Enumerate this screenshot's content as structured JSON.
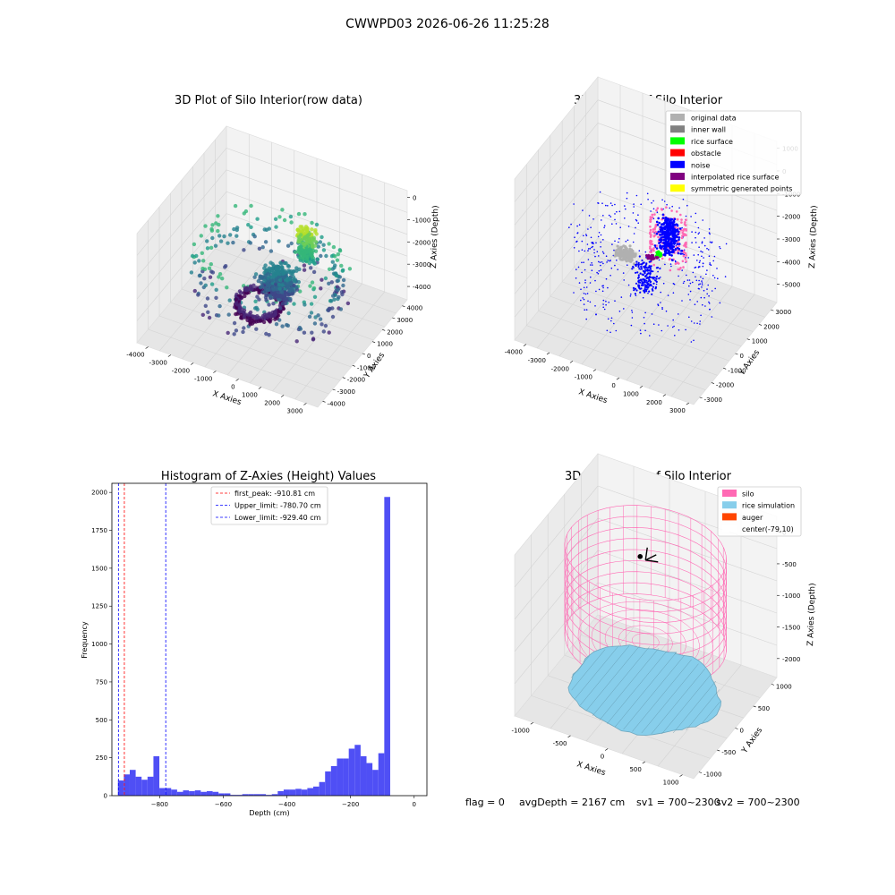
{
  "figure": {
    "suptitle": "CWWPD03 2026-06-26 11:25:28"
  },
  "footer": {
    "flag": "flag = 0",
    "avg_depth": "avgDepth = 2167 cm",
    "sv1": "sv1 = 700~2300",
    "sv2": "sv2 = 700~2300"
  },
  "colors": {
    "hist_bar": "#4b4bf5",
    "first_peak_line": "#ff0000",
    "limit_line": "#0000ff",
    "silo": "#ff69b4",
    "rice_simulation": "#87ceeb",
    "auger": "#ff4500"
  },
  "chart_data": [
    {
      "type": "scatter",
      "title": "3D Plot of Silo Interior(row data)",
      "xlabel": "X Axies",
      "ylabel": "Y Axies",
      "zlabel": "Z Axies (Depth)",
      "x_ticks": [
        "-4000",
        "-3000",
        "-2000",
        "-1000",
        "0",
        "1000",
        "2000",
        "3000"
      ],
      "y_ticks": [
        "-4000",
        "-3000",
        "-2000",
        "-1000",
        "0",
        "1000",
        "2000",
        "3000",
        "4000"
      ],
      "z_ticks": [
        "0",
        "-1000",
        "-2000",
        "-3000",
        "-4000"
      ],
      "xlim": [
        -4500,
        3500
      ],
      "ylim": [
        -4500,
        4500
      ],
      "zlim": [
        -4600,
        300
      ],
      "colormap": "viridis"
    },
    {
      "type": "scatter",
      "title": "3D classify of Silo Interior",
      "xlabel": "X Axies",
      "ylabel": "Y Axies",
      "zlabel": "Z Axies (Depth)",
      "x_ticks": [
        "-4000",
        "-3000",
        "-2000",
        "-1000",
        "0",
        "1000",
        "2000",
        "3000"
      ],
      "y_ticks": [
        "-3000",
        "-2000",
        "-1000",
        "0",
        "1000",
        "2000",
        "3000"
      ],
      "z_ticks": [
        "1000",
        "0",
        "-1000",
        "-2000",
        "-3000",
        "-4000",
        "-5000"
      ],
      "xlim": [
        -4500,
        3200
      ],
      "ylim": [
        -3500,
        3500
      ],
      "zlim": [
        -5800,
        1300
      ],
      "legend_position": "top-right",
      "legend": [
        {
          "label": "original data",
          "color": "#b0b0b0"
        },
        {
          "label": "inner wall",
          "color": "#808080"
        },
        {
          "label": "rice surface",
          "color": "#00ff00"
        },
        {
          "label": "obstacle",
          "color": "#ff0000"
        },
        {
          "label": "noise",
          "color": "#0000ff"
        },
        {
          "label": "interpolated rice surface",
          "color": "#800080"
        },
        {
          "label": "symmetric generated points",
          "color": "#ffff00"
        }
      ]
    },
    {
      "type": "bar",
      "title": "Histogram of Z-Axies (Height) Values",
      "xlabel": "Depth (cm)",
      "ylabel": "Frequency",
      "xlim": [
        -950,
        40
      ],
      "ylim": [
        0,
        2060
      ],
      "x_ticks": [
        -800,
        -600,
        -400,
        -200,
        0
      ],
      "y_ticks": [
        0,
        250,
        500,
        750,
        1000,
        1250,
        1500,
        1750,
        2000
      ],
      "bin_width": 18.6,
      "bin_start": -931,
      "values": [
        100,
        140,
        170,
        125,
        105,
        125,
        260,
        50,
        50,
        40,
        25,
        35,
        30,
        35,
        25,
        30,
        25,
        15,
        15,
        5,
        5,
        10,
        10,
        10,
        10,
        5,
        10,
        30,
        40,
        40,
        45,
        40,
        50,
        60,
        90,
        160,
        195,
        245,
        245,
        310,
        335,
        260,
        215,
        170,
        280,
        1970
      ],
      "reference_lines": [
        {
          "label": "first_peak: -910.81 cm",
          "x": -910.81,
          "color": "#ff0000"
        },
        {
          "label": "Upper_limit: -780.70 cm",
          "x": -780.7,
          "color": "#0000ff"
        },
        {
          "label": "Lower_limit: -929.40 cm",
          "x": -929.4,
          "color": "#0000ff"
        }
      ],
      "legend_position": "top-center"
    },
    {
      "type": "scatter",
      "title": "3D simulation of Silo Interior",
      "xlabel": "X Axies",
      "ylabel": "Y Axies",
      "zlabel": "Z Axies (Depth)",
      "x_ticks": [
        "-1000",
        "-500",
        "0",
        "500",
        "1000"
      ],
      "y_ticks": [
        "-1000",
        "-500",
        "0",
        "500",
        "1000"
      ],
      "z_ticks": [
        "0",
        "-500",
        "-1000",
        "-1500",
        "-2000"
      ],
      "xlim": [
        -1250,
        1150
      ],
      "ylim": [
        -1150,
        1150
      ],
      "zlim": [
        -2300,
        250
      ],
      "legend_position": "top-right",
      "legend": [
        {
          "label": "silo",
          "color": "#ff69b4"
        },
        {
          "label": "rice simulation",
          "color": "#87ceeb"
        },
        {
          "label": "auger",
          "color": "#ff4500"
        },
        {
          "label": "center(-79,10)",
          "color": "#ffffff"
        }
      ]
    }
  ]
}
